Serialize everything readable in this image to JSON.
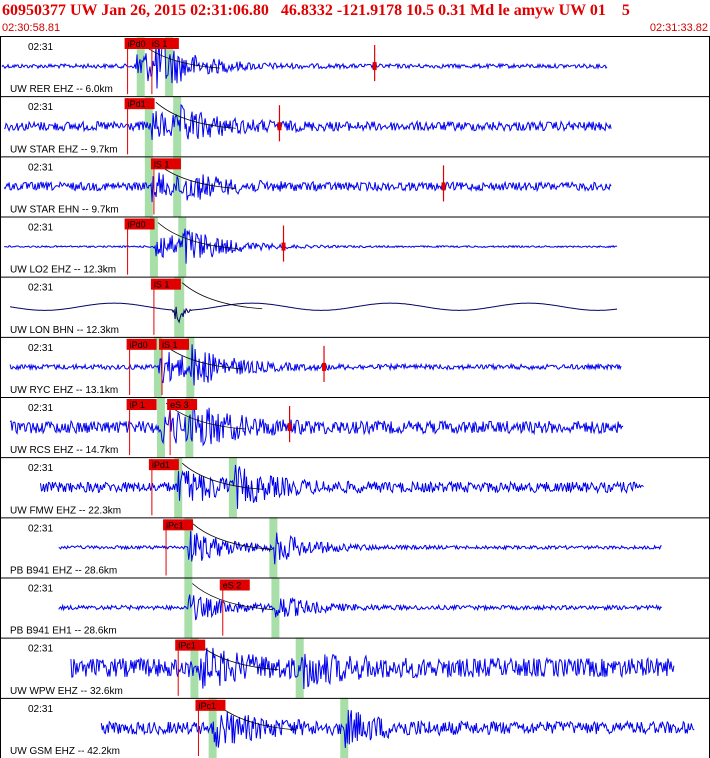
{
  "header": {
    "title": "60950377 UW Jan 26, 2015 02:31:06.80   46.8332 -121.9178 10.5 0.31 Md le amyw UW 01    5",
    "start_time": "02:30:58.81",
    "end_time": "02:31:33.82"
  },
  "colors": {
    "title": "#e10000",
    "trace": "#0000ee",
    "trace_dark": "#000066",
    "pick": "#e10000",
    "window": "#a8dfa8",
    "frame": "#000000",
    "moveout": "#000000"
  },
  "chart_data": {
    "type": "seismogram",
    "x_range_seconds": [
      0,
      35.01
    ],
    "panels": [
      {
        "tick": "02:31",
        "label": "UW RER EHZ -- 6.0km",
        "picks": [
          {
            "name": "iPd0",
            "t": 6.3
          },
          {
            "name": "iS 1",
            "t": 7.5
          }
        ],
        "windows": [
          6.9,
          8.3
        ],
        "trace_start": 0.1,
        "trace_end": 30.0,
        "amplitude": 0.1,
        "p_t": 6.7,
        "s_t": 7.7,
        "event_amp": 0.9,
        "color": "blue",
        "extra_spike": 18.5
      },
      {
        "tick": "02:31",
        "label": "UW STAR EHZ -- 9.7km",
        "picks": [
          {
            "name": "iPd1",
            "t": 6.3
          }
        ],
        "windows": [
          7.3,
          8.7
        ],
        "trace_start": 0.2,
        "trace_end": 30.2,
        "amplitude": 0.22,
        "p_t": 7.5,
        "s_t": 8.9,
        "event_amp": 0.6,
        "color": "blue",
        "extra_spike": 13.8
      },
      {
        "tick": "02:31",
        "label": "UW STAR EHN -- 9.7km",
        "picks": [
          {
            "name": "iS 1",
            "t": 7.6
          }
        ],
        "windows": [
          7.3,
          8.7
        ],
        "trace_start": 0.2,
        "trace_end": 30.2,
        "amplitude": 0.2,
        "p_t": 7.5,
        "s_t": 8.9,
        "event_amp": 0.55,
        "color": "blue",
        "extra_spike": 21.9
      },
      {
        "tick": "02:31",
        "label": "UW LO2 EHZ -- 12.3km",
        "picks": [
          {
            "name": "iPd0",
            "t": 6.3
          }
        ],
        "windows": [],
        "trace_start": 0.2,
        "trace_end": 30.5,
        "amplitude": 0.04,
        "p_t": 7.6,
        "s_t": 9.0,
        "event_amp": 0.8,
        "color": "blue",
        "extra_spike": 14.0
      },
      {
        "tick": "02:31",
        "label": "UW LON BHN -- 12.3km",
        "picks": [
          {
            "name": "iS 1",
            "t": 7.6
          }
        ],
        "windows": [],
        "trace_start": 0.5,
        "trace_end": 30.5,
        "amplitude": 0.1,
        "p_t": 8.8,
        "s_t": 8.9,
        "event_amp": 0.5,
        "color": "dark",
        "extra_spike": -1
      },
      {
        "tick": "02:31",
        "label": "UW RYC EHZ -- 13.1km",
        "picks": [
          {
            "name": "iPd0",
            "t": 6.4
          },
          {
            "name": "iS 1",
            "t": 8.0
          }
        ],
        "windows": [],
        "trace_start": 0.5,
        "trace_end": 30.7,
        "amplitude": 0.12,
        "p_t": 7.8,
        "s_t": 9.4,
        "event_amp": 0.8,
        "color": "blue",
        "extra_spike": 16.0
      },
      {
        "tick": "02:31",
        "label": "UW RCS EHZ -- 14.7km",
        "picks": [
          {
            "name": "iP 1",
            "t": 6.4
          },
          {
            "name": "eS 3",
            "t": 8.4
          }
        ],
        "windows": [
          7.9,
          9.3
        ],
        "trace_start": 0.5,
        "trace_end": 30.8,
        "amplitude": 0.3,
        "p_t": 8.0,
        "s_t": 9.5,
        "event_amp": 0.8,
        "color": "blue",
        "extra_spike": 14.3
      },
      {
        "tick": "02:31",
        "label": "UW FMW EHZ -- 22.3km",
        "picks": [
          {
            "name": "iPd1",
            "t": 7.5
          }
        ],
        "windows": [],
        "trace_start": 2.0,
        "trace_end": 31.8,
        "amplitude": 0.25,
        "p_t": 8.8,
        "s_t": 11.5,
        "event_amp": 0.8,
        "color": "blue",
        "extra_spike": -1
      },
      {
        "tick": "02:31",
        "label": "PB B941 EHZ -- 28.6km",
        "picks": [
          {
            "name": "iPc1",
            "t": 8.2
          }
        ],
        "windows": [],
        "trace_start": 2.9,
        "trace_end": 32.7,
        "amplitude": 0.08,
        "p_t": 9.3,
        "s_t": 13.5,
        "event_amp": 0.8,
        "color": "blue",
        "extra_spike": -1
      },
      {
        "tick": "02:31",
        "label": "PB B941 EH1 -- 28.6km",
        "picks": [
          {
            "name": "eS 2",
            "t": 11.0
          }
        ],
        "windows": [],
        "trace_start": 2.9,
        "trace_end": 32.7,
        "amplitude": 0.1,
        "p_t": 9.3,
        "s_t": 13.6,
        "event_amp": 0.6,
        "color": "blue",
        "extra_spike": -1
      },
      {
        "tick": "02:31",
        "label": "UW WPW EHZ -- 32.6km",
        "picks": [
          {
            "name": "iPc1",
            "t": 8.8
          }
        ],
        "windows": [],
        "trace_start": 3.5,
        "trace_end": 33.3,
        "amplitude": 0.45,
        "p_t": 9.6,
        "s_t": 14.8,
        "event_amp": 0.8,
        "color": "blue",
        "extra_spike": -1
      },
      {
        "tick": "02:31",
        "label": "UW GSM EHZ -- 42.2km",
        "picks": [
          {
            "name": "iPc1",
            "t": 9.8
          }
        ],
        "windows": [],
        "trace_start": 5.0,
        "trace_end": 34.3,
        "amplitude": 0.3,
        "p_t": 10.5,
        "s_t": 17.0,
        "event_amp": 0.8,
        "color": "blue",
        "extra_spike": -1
      }
    ]
  }
}
